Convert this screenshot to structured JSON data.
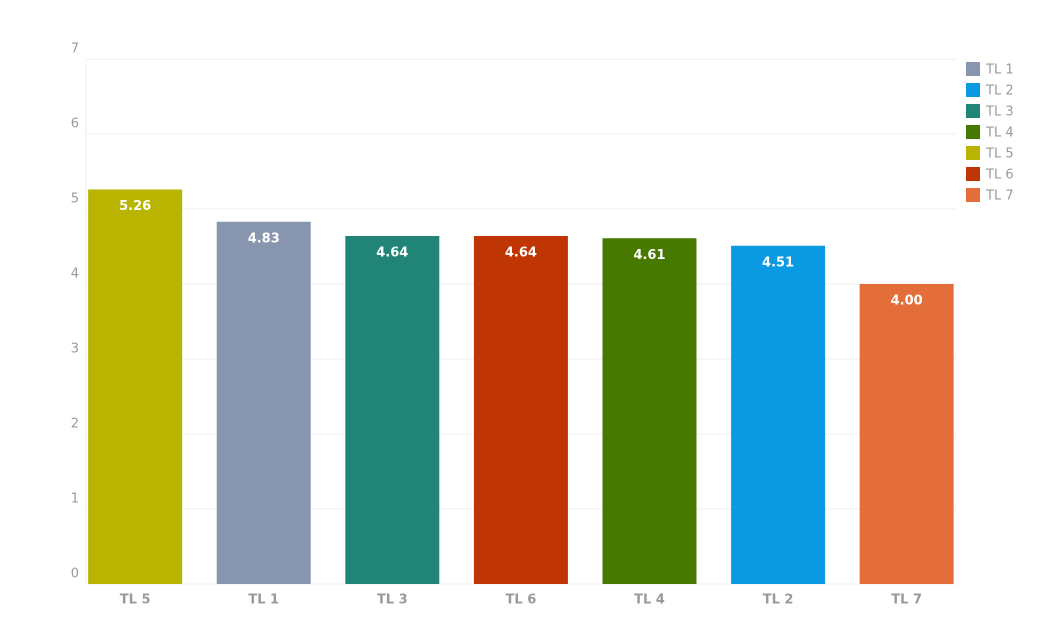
{
  "chart_data": {
    "type": "bar",
    "categories": [
      "TL 5",
      "TL 1",
      "TL 3",
      "TL 6",
      "TL 4",
      "TL 2",
      "TL 7"
    ],
    "values": [
      5.26,
      4.83,
      4.64,
      4.64,
      4.61,
      4.51,
      4.0
    ],
    "value_labels": [
      "5.26",
      "4.83",
      "4.64",
      "4.64",
      "4.61",
      "4.51",
      "4.00"
    ],
    "colors": [
      "#b9b400",
      "#8795ae",
      "#208576",
      "#bf3604",
      "#477800",
      "#0a9ae2",
      "#e36e3a"
    ],
    "ylim": [
      0,
      7
    ],
    "yticks": [
      0,
      1,
      2,
      3,
      4,
      5,
      6,
      7
    ],
    "grid": true,
    "legend": [
      {
        "name": "TL 1",
        "color": "#8795ae"
      },
      {
        "name": "TL 2",
        "color": "#0a9ae2"
      },
      {
        "name": "TL 3",
        "color": "#208576"
      },
      {
        "name": "TL 4",
        "color": "#477800"
      },
      {
        "name": "TL 5",
        "color": "#b9b400"
      },
      {
        "name": "TL 6",
        "color": "#bf3604"
      },
      {
        "name": "TL 7",
        "color": "#e36e3a"
      }
    ]
  }
}
